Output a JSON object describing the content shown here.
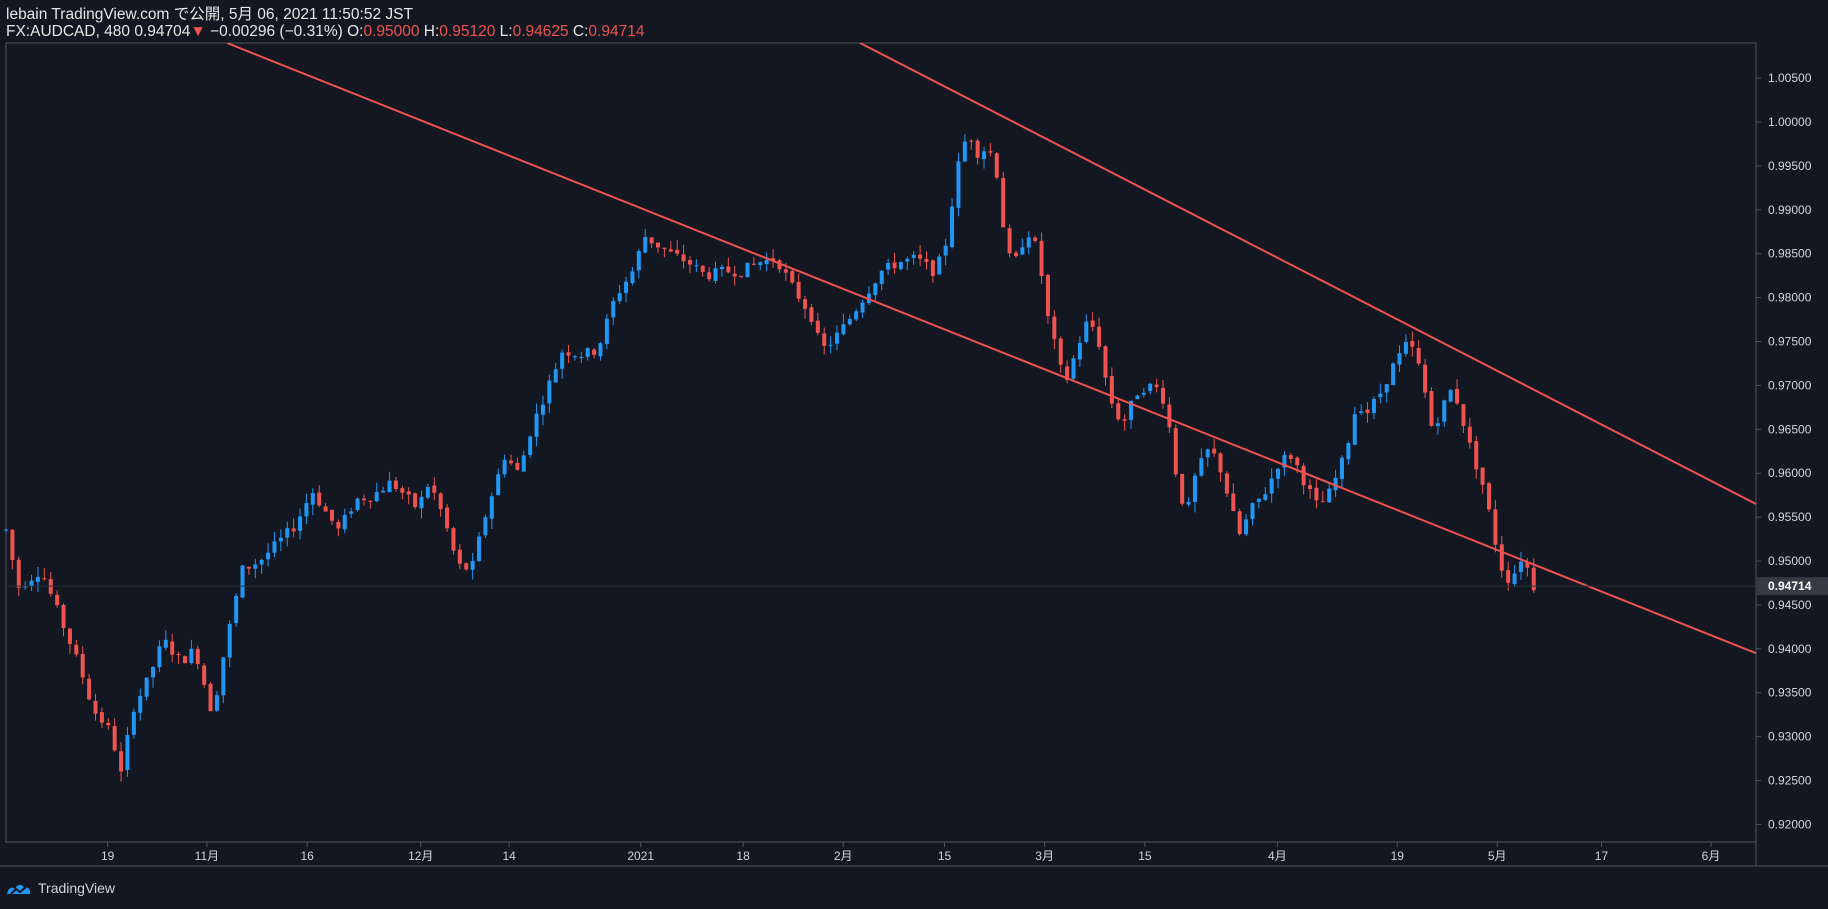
{
  "header": {
    "publisher": "lebain TradingView.com で公開, 5月 06, 2021 11:50:52 JST",
    "symbol": "FX:AUDCAD, 480",
    "last": "0.94704",
    "arrow": "▼",
    "change": "−0.00296 (−0.31%)",
    "o_label": "O:",
    "o_value": "0.95000",
    "h_label": "H:",
    "h_value": "0.95120",
    "l_label": "L:",
    "l_value": "0.94625",
    "c_label": "C:",
    "c_value": "0.94714"
  },
  "footer": {
    "brand": "TradingView",
    "logo_icon": "tradingview-logo-icon"
  },
  "colors": {
    "background": "#131722",
    "up": "#2196f3",
    "down": "#ef5350",
    "channel": "#ef5350",
    "axis_text": "#d1d4dc",
    "grid_border": "#50535e",
    "price_tag_bg": "#363a45"
  },
  "chart_data": {
    "type": "candlestick",
    "symbol": "FX:AUDCAD",
    "interval": "480",
    "ylim": [
      0.918,
      1.009
    ],
    "y_ticks": [
      1.005,
      1.0,
      0.995,
      0.99,
      0.985,
      0.98,
      0.975,
      0.97,
      0.965,
      0.96,
      0.955,
      0.95,
      0.945,
      0.94,
      0.935,
      0.93,
      0.925,
      0.92
    ],
    "y_tick_labels": [
      "1.00500",
      "1.00000",
      "0.99500",
      "0.99000",
      "0.98500",
      "0.98000",
      "0.97500",
      "0.97000",
      "0.96500",
      "0.96000",
      "0.95500",
      "0.95000",
      "0.94500",
      "0.94000",
      "0.93500",
      "0.93000",
      "0.92500",
      "0.92000"
    ],
    "current_price_label": "0.94714",
    "current_price": 0.94714,
    "x_tick_labels": [
      "19",
      "11月",
      "16",
      "12月",
      "14",
      "2021",
      "18",
      "2月",
      "15",
      "3月",
      "15",
      "4月",
      "19",
      "5月",
      "17",
      "6月"
    ],
    "x_tick_positions": [
      0.0581,
      0.1148,
      0.1721,
      0.237,
      0.2875,
      0.3627,
      0.4212,
      0.4784,
      0.5363,
      0.5935,
      0.6508,
      0.7265,
      0.795,
      0.8521,
      0.9117,
      0.9743
    ],
    "price_path": [
      [
        0.0,
        0.9535
      ],
      [
        0.007,
        0.947
      ],
      [
        0.02,
        0.949
      ],
      [
        0.03,
        0.944
      ],
      [
        0.042,
        0.938
      ],
      [
        0.05,
        0.933
      ],
      [
        0.06,
        0.9305
      ],
      [
        0.066,
        0.9255
      ],
      [
        0.072,
        0.933
      ],
      [
        0.08,
        0.936
      ],
      [
        0.09,
        0.941
      ],
      [
        0.1,
        0.9385
      ],
      [
        0.108,
        0.94
      ],
      [
        0.118,
        0.9325
      ],
      [
        0.125,
        0.94
      ],
      [
        0.135,
        0.949
      ],
      [
        0.145,
        0.95
      ],
      [
        0.155,
        0.952
      ],
      [
        0.165,
        0.954
      ],
      [
        0.175,
        0.958
      ],
      [
        0.183,
        0.9555
      ],
      [
        0.19,
        0.9535
      ],
      [
        0.2,
        0.957
      ],
      [
        0.21,
        0.9575
      ],
      [
        0.22,
        0.959
      ],
      [
        0.228,
        0.9575
      ],
      [
        0.235,
        0.956
      ],
      [
        0.242,
        0.959
      ],
      [
        0.25,
        0.955
      ],
      [
        0.258,
        0.9495
      ],
      [
        0.266,
        0.949
      ],
      [
        0.275,
        0.956
      ],
      [
        0.285,
        0.962
      ],
      [
        0.293,
        0.96
      ],
      [
        0.3,
        0.965
      ],
      [
        0.31,
        0.97
      ],
      [
        0.318,
        0.974
      ],
      [
        0.328,
        0.9735
      ],
      [
        0.338,
        0.974
      ],
      [
        0.348,
        0.98
      ],
      [
        0.358,
        0.983
      ],
      [
        0.365,
        0.987
      ],
      [
        0.372,
        0.986
      ],
      [
        0.38,
        0.985
      ],
      [
        0.39,
        0.984
      ],
      [
        0.4,
        0.9825
      ],
      [
        0.41,
        0.983
      ],
      [
        0.42,
        0.983
      ],
      [
        0.43,
        0.984
      ],
      [
        0.44,
        0.9845
      ],
      [
        0.45,
        0.981
      ],
      [
        0.46,
        0.978
      ],
      [
        0.466,
        0.974
      ],
      [
        0.472,
        0.975
      ],
      [
        0.48,
        0.977
      ],
      [
        0.49,
        0.98
      ],
      [
        0.5,
        0.983
      ],
      [
        0.51,
        0.984
      ],
      [
        0.52,
        0.9845
      ],
      [
        0.53,
        0.983
      ],
      [
        0.536,
        0.985
      ],
      [
        0.54,
        0.99
      ],
      [
        0.545,
        0.996
      ],
      [
        0.55,
        0.999
      ],
      [
        0.555,
        0.9965
      ],
      [
        0.56,
        0.997
      ],
      [
        0.565,
        0.996
      ],
      [
        0.57,
        0.988
      ],
      [
        0.575,
        0.983
      ],
      [
        0.58,
        0.986
      ],
      [
        0.585,
        0.9875
      ],
      [
        0.59,
        0.985
      ],
      [
        0.595,
        0.978
      ],
      [
        0.6,
        0.974
      ],
      [
        0.605,
        0.97
      ],
      [
        0.61,
        0.973
      ],
      [
        0.617,
        0.977
      ],
      [
        0.623,
        0.9765
      ],
      [
        0.63,
        0.969
      ],
      [
        0.635,
        0.9665
      ],
      [
        0.64,
        0.966
      ],
      [
        0.645,
        0.969
      ],
      [
        0.652,
        0.97
      ],
      [
        0.66,
        0.9695
      ],
      [
        0.665,
        0.965
      ],
      [
        0.67,
        0.958
      ],
      [
        0.675,
        0.9555
      ],
      [
        0.68,
        0.96
      ],
      [
        0.688,
        0.963
      ],
      [
        0.695,
        0.96
      ],
      [
        0.7,
        0.956
      ],
      [
        0.705,
        0.953
      ],
      [
        0.712,
        0.956
      ],
      [
        0.72,
        0.958
      ],
      [
        0.728,
        0.9615
      ],
      [
        0.735,
        0.962
      ],
      [
        0.742,
        0.959
      ],
      [
        0.75,
        0.956
      ],
      [
        0.757,
        0.958
      ],
      [
        0.765,
        0.962
      ],
      [
        0.772,
        0.968
      ],
      [
        0.778,
        0.967
      ],
      [
        0.785,
        0.969
      ],
      [
        0.792,
        0.972
      ],
      [
        0.8,
        0.9745
      ],
      [
        0.805,
        0.974
      ],
      [
        0.81,
        0.97
      ],
      [
        0.815,
        0.965
      ],
      [
        0.82,
        0.967
      ],
      [
        0.825,
        0.9695
      ],
      [
        0.83,
        0.968
      ],
      [
        0.835,
        0.964
      ],
      [
        0.84,
        0.961
      ],
      [
        0.845,
        0.958
      ],
      [
        0.85,
        0.953
      ],
      [
        0.855,
        0.949
      ],
      [
        0.86,
        0.9475
      ],
      [
        0.865,
        0.9505
      ],
      [
        0.87,
        0.949
      ],
      [
        0.873,
        0.9471
      ]
    ],
    "channel_lines": [
      {
        "name": "",
        "p1": [
          0.1263,
          1.009
        ],
        "p2": [
          1.0,
          0.9395
        ]
      },
      {
        "name": "",
        "p1": [
          0.488,
          1.009
        ],
        "p2": [
          1.0,
          0.9565
        ]
      }
    ]
  }
}
